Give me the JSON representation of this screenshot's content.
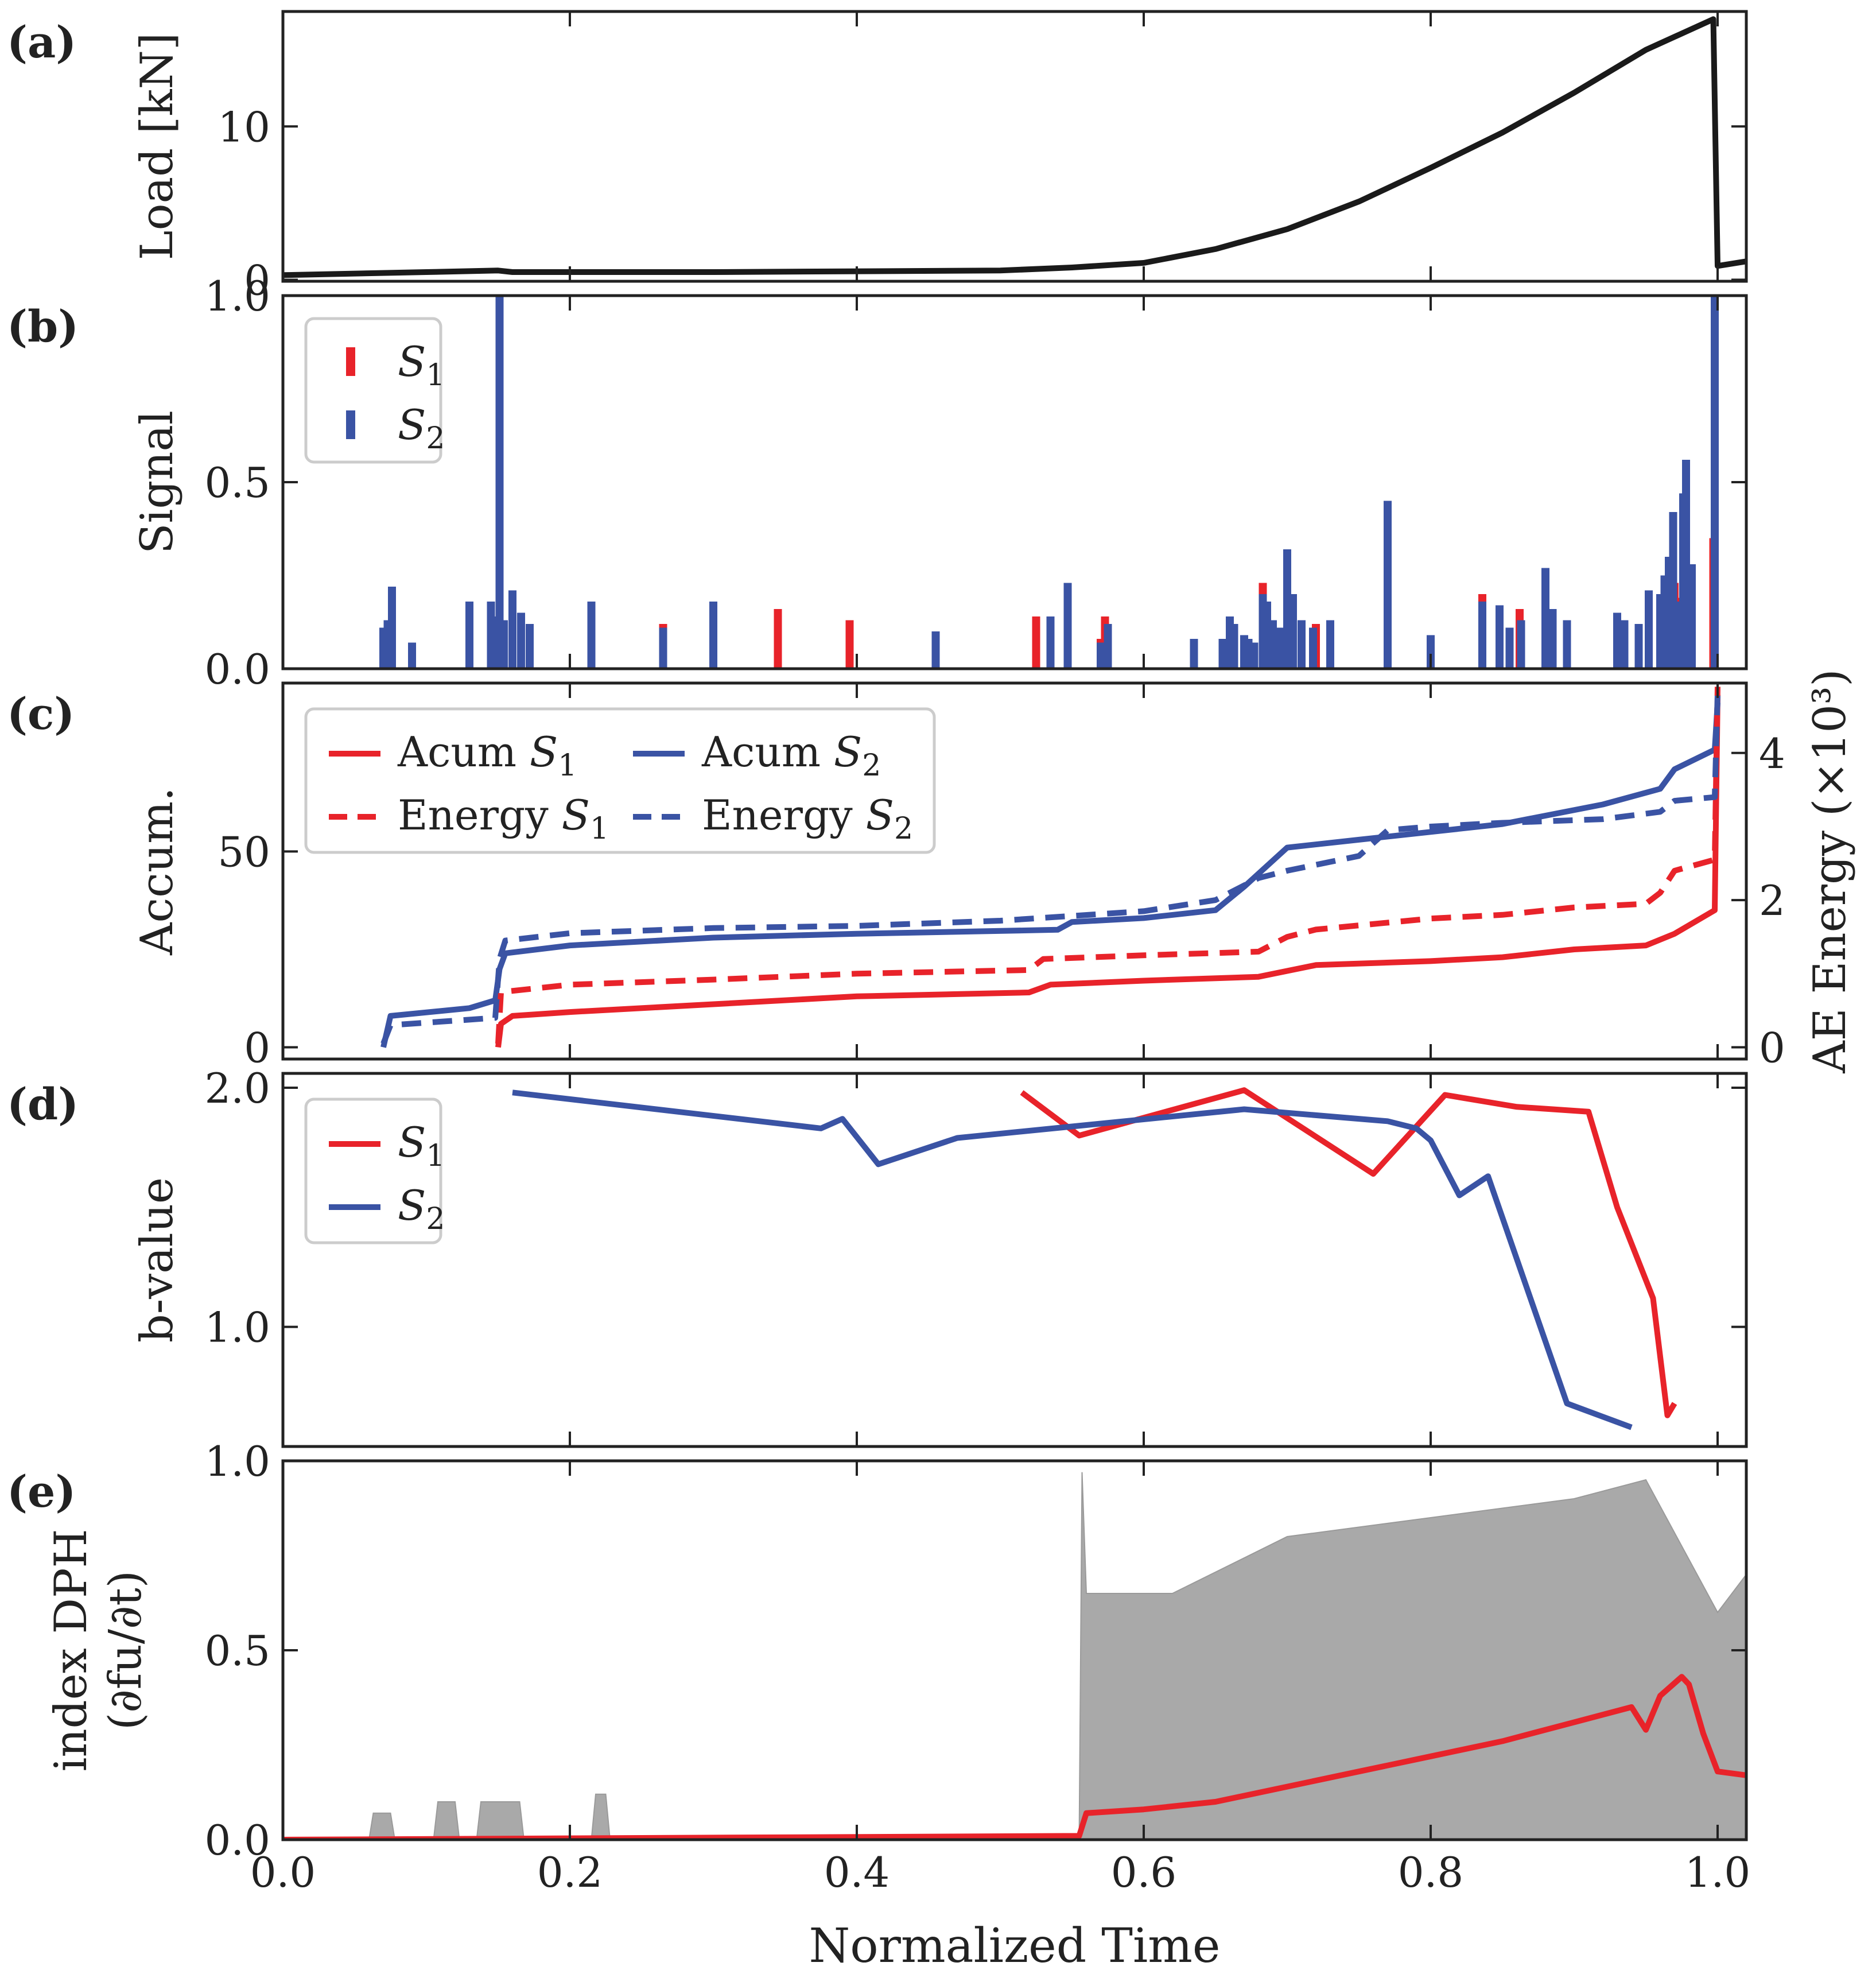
{
  "colors": {
    "s1": "#e8232a",
    "s2": "#3a53a4",
    "load": "#1a1a1a",
    "dph_raw": "#9a9a9a",
    "axis": "#222222"
  },
  "xaxis": {
    "label": "Normalized Time",
    "ticks": [
      0.0,
      0.2,
      0.4,
      0.6,
      0.8,
      1.0
    ],
    "tick_labels": [
      "0.0",
      "0.2",
      "0.4",
      "0.6",
      "0.8",
      "1.0"
    ],
    "xlim": [
      0.0,
      1.02
    ]
  },
  "chart_data": [
    {
      "panel": "(a)",
      "type": "line",
      "ylabel": "Load [kN]",
      "ylim": [
        -0.1,
        17.5
      ],
      "yticks": [
        0,
        10
      ],
      "ytick_labels": [
        "0",
        "10"
      ],
      "series": [
        {
          "color": "#1a1a1a",
          "x": [
            0.0,
            0.1,
            0.15,
            0.16,
            0.3,
            0.5,
            0.55,
            0.6,
            0.65,
            0.7,
            0.75,
            0.8,
            0.85,
            0.9,
            0.95,
            0.997,
            1.0,
            1.02
          ],
          "y": [
            0.3,
            0.5,
            0.6,
            0.5,
            0.5,
            0.6,
            0.8,
            1.1,
            2.0,
            3.3,
            5.1,
            7.3,
            9.6,
            12.2,
            15.0,
            17.0,
            0.9,
            1.2
          ]
        }
      ]
    },
    {
      "panel": "(b)",
      "type": "bar",
      "ylabel": "Signal",
      "ylim": [
        0.0,
        1.0
      ],
      "yticks": [
        0.0,
        0.5,
        1.0
      ],
      "ytick_labels": [
        "0.0",
        "0.5",
        "1.0"
      ],
      "legend": {
        "position": "top-left",
        "entries": [
          "S1",
          "S2"
        ]
      },
      "series": [
        {
          "name": "S1",
          "color": "#e8232a",
          "x": [
            0.265,
            0.345,
            0.395,
            0.525,
            0.57,
            0.573,
            0.683,
            0.72,
            0.836,
            0.862,
            0.962,
            0.97,
            0.975,
            0.997
          ],
          "y": [
            0.12,
            0.16,
            0.13,
            0.14,
            0.08,
            0.14,
            0.23,
            0.12,
            0.2,
            0.16,
            0.2,
            0.23,
            0.19,
            0.35
          ]
        },
        {
          "name": "S2",
          "color": "#3a53a4",
          "x": [
            0.07,
            0.073,
            0.076,
            0.09,
            0.13,
            0.145,
            0.148,
            0.151,
            0.154,
            0.16,
            0.166,
            0.172,
            0.215,
            0.265,
            0.3,
            0.455,
            0.535,
            0.547,
            0.57,
            0.575,
            0.635,
            0.655,
            0.66,
            0.663,
            0.67,
            0.673,
            0.677,
            0.683,
            0.686,
            0.69,
            0.695,
            0.7,
            0.704,
            0.71,
            0.718,
            0.73,
            0.77,
            0.8,
            0.836,
            0.848,
            0.855,
            0.863,
            0.88,
            0.885,
            0.895,
            0.93,
            0.935,
            0.945,
            0.952,
            0.96,
            0.963,
            0.966,
            0.969,
            0.972,
            0.976,
            0.978,
            0.982,
            0.998
          ],
          "y": [
            0.11,
            0.13,
            0.22,
            0.07,
            0.18,
            0.18,
            0.14,
            1.0,
            0.13,
            0.21,
            0.15,
            0.12,
            0.18,
            0.11,
            0.18,
            0.1,
            0.14,
            0.23,
            0.07,
            0.12,
            0.08,
            0.08,
            0.14,
            0.12,
            0.09,
            0.08,
            0.07,
            0.2,
            0.18,
            0.13,
            0.11,
            0.32,
            0.2,
            0.13,
            0.11,
            0.13,
            0.45,
            0.09,
            0.18,
            0.17,
            0.11,
            0.13,
            0.27,
            0.16,
            0.13,
            0.15,
            0.13,
            0.12,
            0.21,
            0.2,
            0.25,
            0.3,
            0.42,
            0.18,
            0.47,
            0.56,
            0.28,
            1.0
          ]
        }
      ]
    },
    {
      "panel": "(c)",
      "type": "line",
      "ylabel": "Accum.",
      "ylim": [
        -3,
        93
      ],
      "yticks": [
        0,
        50
      ],
      "ytick_labels": [
        "0",
        "50"
      ],
      "y2label": "AE Energy (×10³)",
      "y2lim": [
        -0.16,
        4.95
      ],
      "y2ticks": [
        0,
        2,
        4
      ],
      "y2tick_labels": [
        "0",
        "2",
        "4"
      ],
      "legend": {
        "position": "top-left",
        "entries": [
          "Acum S1",
          "Energy S1",
          "Acum S2",
          "Energy S2"
        ]
      },
      "series": [
        {
          "name": "Acum S1",
          "axis": "left",
          "style": "solid",
          "color": "#e8232a",
          "x": [
            0.15,
            0.152,
            0.16,
            0.2,
            0.3,
            0.4,
            0.52,
            0.535,
            0.6,
            0.68,
            0.72,
            0.8,
            0.85,
            0.9,
            0.95,
            0.97,
            0.998,
            1.0
          ],
          "y": [
            0,
            6,
            8,
            9,
            11,
            13,
            14,
            16,
            17,
            18,
            21,
            22,
            23,
            25,
            26,
            29,
            35,
            90
          ]
        },
        {
          "name": "Acum S2",
          "axis": "left",
          "style": "solid",
          "color": "#3a53a4",
          "x": [
            0.07,
            0.075,
            0.13,
            0.148,
            0.151,
            0.155,
            0.2,
            0.3,
            0.4,
            0.54,
            0.55,
            0.6,
            0.65,
            0.67,
            0.7,
            0.75,
            0.8,
            0.85,
            0.92,
            0.96,
            0.97,
            0.998,
            1.0
          ],
          "y": [
            0,
            8,
            10,
            12,
            20,
            24,
            26,
            28,
            29,
            30,
            32,
            33,
            35,
            41,
            51,
            53,
            55,
            57,
            62,
            66,
            71,
            76,
            88
          ]
        },
        {
          "name": "Energy S1",
          "axis": "right",
          "style": "dashed",
          "color": "#e8232a",
          "x": [
            0.15,
            0.152,
            0.2,
            0.3,
            0.4,
            0.52,
            0.53,
            0.6,
            0.68,
            0.7,
            0.72,
            0.8,
            0.85,
            0.9,
            0.95,
            0.96,
            0.97,
            0.998,
            1.0
          ],
          "y": [
            0.05,
            0.75,
            0.85,
            0.92,
            1.0,
            1.05,
            1.2,
            1.25,
            1.3,
            1.5,
            1.6,
            1.75,
            1.8,
            1.9,
            1.95,
            2.1,
            2.4,
            2.55,
            4.9
          ]
        },
        {
          "name": "Energy S2",
          "axis": "right",
          "style": "dashed",
          "color": "#3a53a4",
          "x": [
            0.07,
            0.075,
            0.148,
            0.151,
            0.155,
            0.2,
            0.3,
            0.4,
            0.5,
            0.6,
            0.65,
            0.68,
            0.7,
            0.75,
            0.77,
            0.8,
            0.85,
            0.92,
            0.96,
            0.97,
            0.998,
            1.0
          ],
          "y": [
            0.05,
            0.3,
            0.4,
            1.2,
            1.45,
            1.55,
            1.62,
            1.65,
            1.72,
            1.85,
            2.0,
            2.3,
            2.4,
            2.6,
            2.95,
            3.0,
            3.05,
            3.1,
            3.2,
            3.35,
            3.4,
            4.8
          ]
        }
      ]
    },
    {
      "panel": "(d)",
      "type": "line",
      "ylabel": "b-value",
      "ylim": [
        0.5,
        2.06
      ],
      "yticks": [
        1.0,
        2.0
      ],
      "ytick_labels": [
        "1.0",
        "2.0"
      ],
      "legend": {
        "position": "top-left",
        "entries": [
          "S1",
          "S2"
        ]
      },
      "series": [
        {
          "name": "S1",
          "color": "#e8232a",
          "x": [
            0.515,
            0.555,
            0.67,
            0.76,
            0.81,
            0.86,
            0.91,
            0.93,
            0.955,
            0.965,
            0.97
          ],
          "y": [
            1.98,
            1.8,
            1.99,
            1.64,
            1.97,
            1.92,
            1.9,
            1.5,
            1.12,
            0.63,
            0.68
          ]
        },
        {
          "name": "S2",
          "color": "#3a53a4",
          "x": [
            0.16,
            0.375,
            0.39,
            0.415,
            0.47,
            0.67,
            0.77,
            0.79,
            0.8,
            0.82,
            0.84,
            0.895,
            0.94
          ],
          "y": [
            1.98,
            1.83,
            1.87,
            1.68,
            1.79,
            1.91,
            1.86,
            1.83,
            1.78,
            1.55,
            1.63,
            0.68,
            0.58
          ]
        }
      ]
    },
    {
      "panel": "(e)",
      "type": "area",
      "ylabel": "index DPH",
      "ylabel2": "(∂fu/∂t)",
      "ylim": [
        0.0,
        1.0
      ],
      "yticks": [
        0.0,
        0.5,
        1.0
      ],
      "ytick_labels": [
        "0.0",
        "0.5",
        "1.0"
      ],
      "series": [
        {
          "style": "area",
          "color": "#9a9a9a",
          "x": [
            0.0,
            0.06,
            0.063,
            0.075,
            0.078,
            0.105,
            0.108,
            0.12,
            0.123,
            0.135,
            0.138,
            0.165,
            0.168,
            0.215,
            0.218,
            0.225,
            0.228,
            0.555,
            0.557,
            0.56,
            0.62,
            0.7,
            0.8,
            0.9,
            0.95,
            1.0,
            1.02
          ],
          "y": [
            0.0,
            0.0,
            0.07,
            0.07,
            0.0,
            0.0,
            0.1,
            0.1,
            0.0,
            0.0,
            0.1,
            0.1,
            0.0,
            0.0,
            0.12,
            0.12,
            0.0,
            0.0,
            0.97,
            0.65,
            0.65,
            0.8,
            0.85,
            0.9,
            0.95,
            0.6,
            0.7
          ]
        },
        {
          "style": "solid",
          "color": "#e8232a",
          "x": [
            0.0,
            0.555,
            0.56,
            0.6,
            0.65,
            0.7,
            0.75,
            0.8,
            0.85,
            0.9,
            0.94,
            0.95,
            0.96,
            0.975,
            0.98,
            0.99,
            1.0,
            1.02
          ],
          "y": [
            0.0,
            0.01,
            0.07,
            0.08,
            0.1,
            0.14,
            0.18,
            0.22,
            0.26,
            0.31,
            0.35,
            0.29,
            0.38,
            0.43,
            0.41,
            0.28,
            0.18,
            0.17
          ]
        }
      ]
    }
  ]
}
